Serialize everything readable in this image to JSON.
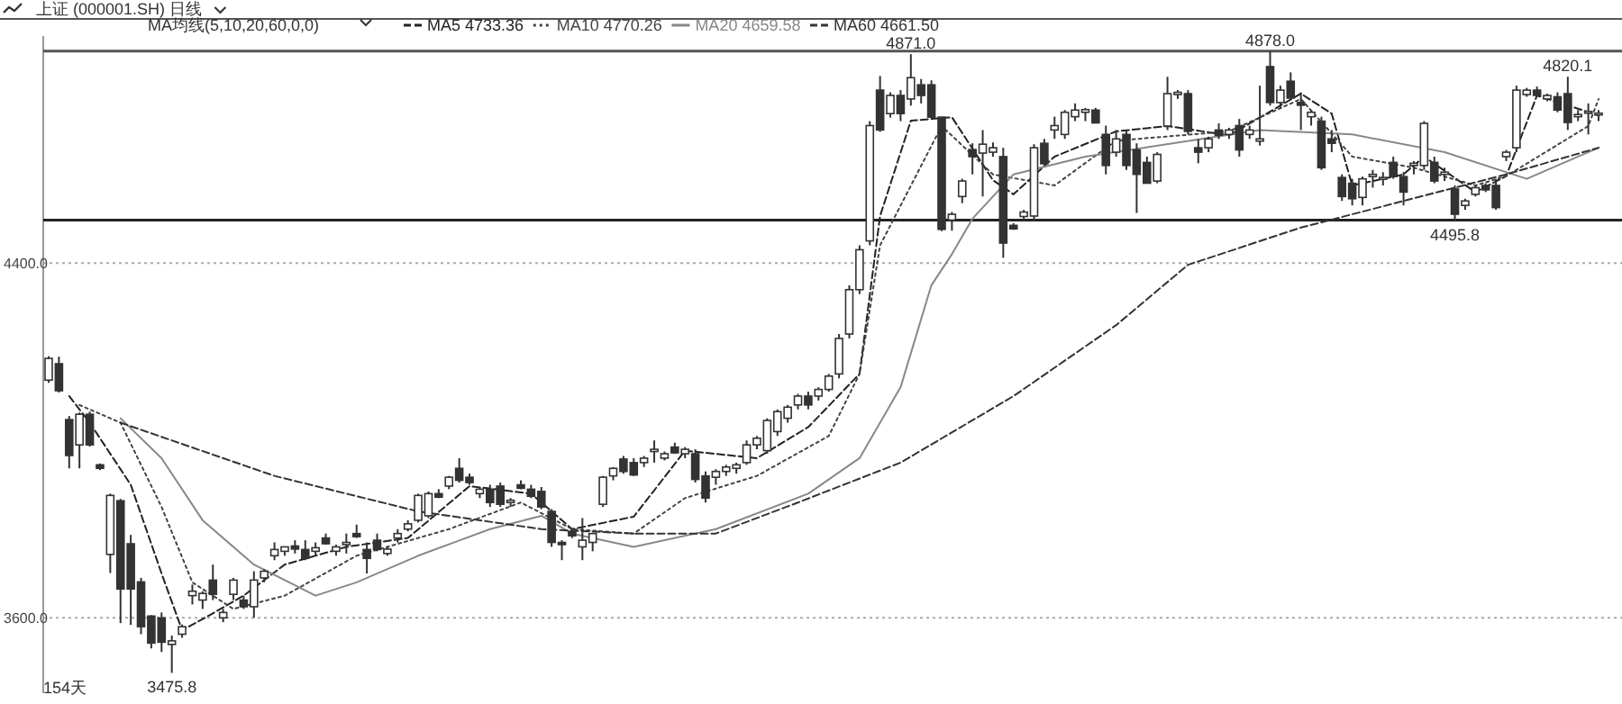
{
  "chart_data": {
    "type": "candlestick",
    "title": "上证 (000001.SH) 日线",
    "subtitle": "MA均线(5,10,20,60,0,0)",
    "categories": [
      null,
      null,
      null,
      null,
      null,
      null,
      null,
      null,
      null,
      null,
      null,
      null,
      null,
      null,
      null,
      null,
      null,
      null,
      null,
      null,
      null,
      null,
      null,
      null,
      null,
      null,
      null,
      null,
      null,
      null,
      null,
      null,
      null,
      null,
      null,
      null,
      null,
      null,
      null,
      null,
      null,
      null,
      null,
      null,
      null,
      null,
      null,
      null,
      null,
      null,
      null,
      null,
      null,
      null,
      null,
      null,
      null,
      null,
      null,
      null,
      null,
      null,
      null,
      null,
      null,
      null,
      null,
      null,
      null,
      null,
      null,
      null,
      null,
      null,
      null,
      null,
      null,
      null,
      null,
      null,
      null,
      null,
      null,
      null,
      null,
      null,
      null,
      null,
      null,
      null,
      null,
      null,
      null,
      null,
      null,
      null,
      null,
      null,
      null,
      null,
      null,
      null,
      null,
      null,
      null,
      null,
      null,
      null,
      null,
      null,
      null,
      null,
      null,
      null,
      null,
      null,
      null,
      null,
      null,
      null,
      null,
      null,
      null,
      null,
      null,
      null,
      null,
      null,
      null,
      null,
      null,
      null,
      null,
      null,
      null,
      null,
      null,
      null,
      null,
      null,
      null,
      null,
      null,
      null,
      null,
      null,
      null,
      null,
      null,
      null,
      null,
      null
    ],
    "ohlc": [
      [
        4136,
        4190,
        4130,
        4185
      ],
      [
        4173,
        4189,
        4108,
        4112
      ],
      [
        4047,
        4055,
        3937,
        3966
      ],
      [
        3990,
        4063,
        3937,
        4059
      ],
      [
        4059,
        4065,
        3986,
        3990
      ],
      [
        3945,
        3948,
        3933,
        3937
      ],
      [
        3743,
        3880,
        3701,
        3876
      ],
      [
        3864,
        3868,
        3588,
        3665
      ],
      [
        3767,
        3787,
        3584,
        3665
      ],
      [
        3681,
        3690,
        3563,
        3580
      ],
      [
        3604,
        3606,
        3531,
        3543
      ],
      [
        3600,
        3612,
        3523,
        3545
      ],
      [
        3540,
        3560,
        3475.8,
        3548
      ],
      [
        3563,
        3585,
        3555,
        3580
      ],
      [
        3650,
        3675,
        3630,
        3660
      ],
      [
        3640,
        3660,
        3620,
        3655
      ],
      [
        3685,
        3720,
        3640,
        3653
      ],
      [
        3600,
        3620,
        3590,
        3612
      ],
      [
        3653,
        3690,
        3640,
        3685
      ],
      [
        3640,
        3650,
        3620,
        3625
      ],
      [
        3625,
        3705,
        3600,
        3685
      ],
      [
        3690,
        3710,
        3680,
        3705
      ],
      [
        3740,
        3770,
        3730,
        3754
      ],
      [
        3750,
        3760,
        3740,
        3760
      ],
      [
        3762,
        3775,
        3745,
        3755
      ],
      [
        3754,
        3775,
        3730,
        3734
      ],
      [
        3750,
        3770,
        3740,
        3758
      ],
      [
        3780,
        3790,
        3765,
        3767
      ],
      [
        3750,
        3765,
        3740,
        3760
      ],
      [
        3765,
        3790,
        3745,
        3770
      ],
      [
        3790,
        3810,
        3780,
        3783
      ],
      [
        3754,
        3770,
        3700,
        3734
      ],
      [
        3775,
        3790,
        3750,
        3754
      ],
      [
        3745,
        3760,
        3740,
        3755
      ],
      [
        3780,
        3800,
        3770,
        3790
      ],
      [
        3800,
        3820,
        3795,
        3812
      ],
      [
        3820,
        3880,
        3815,
        3876
      ],
      [
        3830,
        3885,
        3825,
        3880
      ],
      [
        3880,
        3890,
        3870,
        3872
      ],
      [
        3897,
        3920,
        3890,
        3917
      ],
      [
        3937,
        3960,
        3905,
        3910
      ],
      [
        3917,
        3925,
        3900,
        3905
      ],
      [
        3880,
        3895,
        3870,
        3890
      ],
      [
        3890,
        3900,
        3850,
        3860
      ],
      [
        3897,
        3905,
        3850,
        3856
      ],
      [
        3860,
        3870,
        3850,
        3865
      ],
      [
        3900,
        3910,
        3890,
        3892
      ],
      [
        3890,
        3900,
        3870,
        3874
      ],
      [
        3885,
        3895,
        3845,
        3850
      ],
      [
        3840,
        3845,
        3760,
        3770
      ],
      [
        3770,
        3775,
        3730,
        3765
      ],
      [
        3795,
        3800,
        3780,
        3785
      ],
      [
        3760,
        3825,
        3730,
        3775
      ],
      [
        3770,
        3790,
        3750,
        3790
      ],
      [
        3856,
        3920,
        3850,
        3917
      ],
      [
        3920,
        3940,
        3910,
        3937
      ],
      [
        3958,
        3965,
        3925,
        3930
      ],
      [
        3950,
        3960,
        3920,
        3922
      ],
      [
        3950,
        3965,
        3940,
        3960
      ],
      [
        3975,
        4000,
        3950,
        3980
      ],
      [
        3960,
        3975,
        3955,
        3970
      ],
      [
        3985,
        3995,
        3970,
        3972
      ],
      [
        3970,
        3985,
        3960,
        3980
      ],
      [
        3970,
        3980,
        3905,
        3912
      ],
      [
        3920,
        3930,
        3860,
        3870
      ],
      [
        3917,
        3935,
        3900,
        3930
      ],
      [
        3930,
        3945,
        3920,
        3940
      ],
      [
        3937,
        3950,
        3925,
        3945
      ],
      [
        3950,
        4000,
        3945,
        3990
      ],
      [
        3990,
        4010,
        3980,
        4005
      ],
      [
        3977,
        4050,
        3970,
        4045
      ],
      [
        4020,
        4070,
        4010,
        4065
      ],
      [
        4050,
        4080,
        4040,
        4075
      ],
      [
        4080,
        4105,
        4070,
        4100
      ],
      [
        4100,
        4110,
        4070,
        4080
      ],
      [
        4100,
        4120,
        4090,
        4115
      ],
      [
        4115,
        4150,
        4110,
        4145
      ],
      [
        4150,
        4240,
        4140,
        4230
      ],
      [
        4240,
        4350,
        4230,
        4340
      ],
      [
        4340,
        4440,
        4330,
        4430
      ],
      [
        4450,
        4720,
        4440,
        4710
      ],
      [
        4790,
        4822,
        4696,
        4700
      ],
      [
        4737,
        4785,
        4728,
        4778
      ],
      [
        4778,
        4790,
        4720,
        4737
      ],
      [
        4770,
        4871,
        4755,
        4818
      ],
      [
        4802,
        4815,
        4760,
        4778
      ],
      [
        4802,
        4812,
        4727,
        4729
      ],
      [
        4729,
        4730,
        4472,
        4476
      ],
      [
        4497,
        4515,
        4473,
        4510
      ],
      [
        4550,
        4590,
        4535,
        4585
      ],
      [
        4656,
        4670,
        4600,
        4640
      ],
      [
        4648,
        4700,
        4550,
        4668
      ],
      [
        4650,
        4672,
        4640,
        4660
      ],
      [
        4640,
        4660,
        4412,
        4445
      ],
      [
        4485,
        4490,
        4475,
        4477
      ],
      [
        4505,
        4520,
        4495,
        4515
      ],
      [
        4506,
        4668,
        4495,
        4660
      ],
      [
        4670,
        4680,
        4620,
        4624
      ],
      [
        4700,
        4730,
        4680,
        4710
      ],
      [
        4690,
        4745,
        4680,
        4740
      ],
      [
        4730,
        4760,
        4720,
        4745
      ],
      [
        4740,
        4750,
        4720,
        4746
      ],
      [
        4745,
        4750,
        4715,
        4716
      ],
      [
        4690,
        4710,
        4600,
        4620
      ],
      [
        4650,
        4700,
        4640,
        4680
      ],
      [
        4690,
        4700,
        4610,
        4620
      ],
      [
        4655,
        4670,
        4513,
        4600
      ],
      [
        4627,
        4640,
        4580,
        4580
      ],
      [
        4585,
        4650,
        4580,
        4645
      ],
      [
        4709,
        4820,
        4700,
        4782
      ],
      [
        4780,
        4790,
        4770,
        4785
      ],
      [
        4782,
        4790,
        4690,
        4697
      ],
      [
        4660,
        4680,
        4625,
        4650
      ],
      [
        4660,
        4685,
        4650,
        4680
      ],
      [
        4700,
        4715,
        4680,
        4688
      ],
      [
        4690,
        4705,
        4680,
        4700
      ],
      [
        4710,
        4725,
        4640,
        4655
      ],
      [
        4690,
        4710,
        4680,
        4700
      ],
      [
        4675,
        4800,
        4665,
        4680
      ],
      [
        4843,
        4878,
        4755,
        4762
      ],
      [
        4762,
        4800,
        4750,
        4790
      ],
      [
        4810,
        4830,
        4770,
        4772
      ],
      [
        4762,
        4785,
        4700,
        4756
      ],
      [
        4730,
        4745,
        4710,
        4740
      ],
      [
        4720,
        4730,
        4610,
        4615
      ],
      [
        4680,
        4700,
        4650,
        4670
      ],
      [
        4593,
        4600,
        4540,
        4550
      ],
      [
        4580,
        4590,
        4530,
        4545
      ],
      [
        4548,
        4595,
        4530,
        4590
      ],
      [
        4595,
        4610,
        4570,
        4600
      ],
      [
        4590,
        4605,
        4575,
        4593
      ],
      [
        4627,
        4640,
        4590,
        4595
      ],
      [
        4595,
        4605,
        4530,
        4560
      ],
      [
        4620,
        4630,
        4600,
        4625
      ],
      [
        4620,
        4720,
        4610,
        4715
      ],
      [
        4627,
        4640,
        4580,
        4585
      ],
      [
        4600,
        4615,
        4585,
        4605
      ],
      [
        4567,
        4575,
        4495.8,
        4510
      ],
      [
        4530,
        4545,
        4520,
        4540
      ],
      [
        4555,
        4575,
        4550,
        4570
      ],
      [
        4575,
        4580,
        4560,
        4565
      ],
      [
        4575,
        4590,
        4520,
        4525
      ],
      [
        4640,
        4655,
        4630,
        4650
      ],
      [
        4660,
        4800,
        4650,
        4790
      ],
      [
        4780,
        4795,
        4775,
        4790
      ],
      [
        4790,
        4798,
        4775,
        4778
      ],
      [
        4770,
        4782,
        4765,
        4778
      ],
      [
        4775,
        4785,
        4740,
        4745
      ],
      [
        4782,
        4820.1,
        4700,
        4717
      ],
      [
        4730,
        4745,
        4720,
        4735
      ],
      [
        4740,
        4760,
        4690,
        4742
      ],
      [
        4735,
        4745,
        4720,
        4738
      ]
    ],
    "series": [
      {
        "name": "MA5 4733.36",
        "type": "line",
        "color": "#222222",
        "line_style": "dashed",
        "values": [
          null,
          null,
          4100,
          null,
          4040,
          null,
          null,
          null,
          3900,
          null,
          null,
          3700,
          null,
          3572,
          null,
          null,
          3610,
          null,
          null,
          3650,
          null,
          null,
          null,
          3720,
          null,
          null,
          null,
          null,
          null,
          3760,
          null,
          null,
          null,
          null,
          null,
          3780,
          null,
          null,
          null,
          null,
          null,
          3897,
          null,
          null,
          null,
          null,
          null,
          3880,
          null,
          null,
          null,
          3800,
          null,
          null,
          null,
          null,
          null,
          3828,
          null,
          null,
          null,
          null,
          3977,
          null,
          null,
          null,
          null,
          null,
          null,
          3960,
          null,
          null,
          null,
          null,
          4030,
          null,
          null,
          null,
          null,
          4150,
          null,
          4506,
          null,
          null,
          4721,
          null,
          null,
          null,
          4729,
          null,
          null,
          null,
          4587,
          null,
          4555,
          null,
          null,
          null,
          4640,
          null,
          null,
          null,
          null,
          null,
          4697,
          null,
          null,
          null,
          null,
          4709,
          null,
          null,
          null,
          null,
          null,
          4688,
          null,
          null,
          null,
          null,
          null,
          null,
          4782,
          null,
          null,
          4737,
          null,
          4575,
          null,
          null,
          null,
          null,
          4600,
          null,
          4640,
          null,
          null,
          null,
          null,
          4560,
          null,
          null,
          4596,
          null,
          null,
          4778,
          null,
          null,
          null,
          null,
          null,
          4733
        ]
      },
      {
        "name": "MA10 4770.26",
        "type": "line",
        "color": "#444444",
        "line_style": "dotted",
        "values": [
          null,
          null,
          null,
          4080,
          null,
          null,
          null,
          4040,
          null,
          null,
          null,
          3850,
          null,
          null,
          3680,
          null,
          null,
          null,
          3620,
          null,
          null,
          null,
          null,
          3650,
          null,
          null,
          null,
          null,
          null,
          null,
          3740,
          null,
          null,
          null,
          null,
          null,
          null,
          null,
          null,
          3800,
          null,
          null,
          null,
          null,
          null,
          null,
          3860,
          null,
          null,
          null,
          null,
          3800,
          null,
          null,
          null,
          null,
          null,
          3790,
          null,
          null,
          null,
          null,
          3870,
          null,
          null,
          null,
          null,
          null,
          null,
          3920,
          null,
          null,
          null,
          null,
          null,
          null,
          4010,
          null,
          null,
          4150,
          null,
          4440,
          null,
          null,
          null,
          null,
          null,
          4709,
          null,
          null,
          null,
          null,
          4600,
          null,
          null,
          null,
          null,
          null,
          4575,
          null,
          null,
          null,
          null,
          null,
          4676,
          null,
          null,
          null,
          null,
          null,
          null,
          null,
          null,
          null,
          null,
          4697,
          null,
          null,
          null,
          null,
          null,
          null,
          4770,
          null,
          null,
          null,
          null,
          4640,
          null,
          null,
          null,
          null,
          null,
          4615,
          null,
          null,
          null,
          null,
          null,
          4575,
          null,
          null,
          4596,
          null,
          null,
          null,
          null,
          null,
          null,
          null,
          4709,
          4770
        ]
      },
      {
        "name": "MA20 4659.58",
        "type": "line",
        "color": "#888888",
        "line_style": "solid",
        "values": [
          null,
          null,
          null,
          null,
          null,
          null,
          null,
          4050,
          null,
          null,
          null,
          3960,
          null,
          null,
          null,
          3820,
          null,
          null,
          null,
          null,
          3720,
          null,
          null,
          null,
          null,
          null,
          3650,
          null,
          null,
          null,
          3680,
          null,
          null,
          null,
          null,
          null,
          3740,
          null,
          null,
          null,
          null,
          null,
          null,
          3800,
          null,
          null,
          null,
          null,
          3830,
          null,
          null,
          3790,
          null,
          null,
          null,
          null,
          null,
          3760,
          null,
          null,
          null,
          null,
          null,
          null,
          null,
          3800,
          null,
          null,
          null,
          null,
          null,
          null,
          null,
          null,
          3880,
          null,
          null,
          null,
          null,
          3960,
          null,
          null,
          null,
          4120,
          null,
          null,
          4350,
          null,
          4420,
          null,
          4500,
          null,
          null,
          null,
          4600,
          null,
          null,
          null,
          null,
          null,
          null,
          4640,
          null,
          null,
          null,
          null,
          null,
          null,
          null,
          null,
          null,
          null,
          null,
          null,
          null,
          null,
          null,
          null,
          4700,
          null,
          null,
          null,
          null,
          null,
          null,
          null,
          null,
          4690,
          null,
          null,
          null,
          null,
          null,
          null,
          null,
          null,
          4650,
          null,
          null,
          null,
          null,
          null,
          null,
          null,
          4590,
          null,
          null,
          null,
          null,
          null,
          null,
          4660
        ]
      },
      {
        "name": "MA60 4661.50",
        "type": "line",
        "color": "#333333",
        "line_style": "dashed",
        "values": [
          null,
          null,
          null,
          null,
          null,
          null,
          null,
          4040,
          null,
          null,
          null,
          null,
          null,
          null,
          null,
          null,
          null,
          null,
          null,
          null,
          null,
          null,
          3920,
          null,
          null,
          null,
          null,
          null,
          null,
          null,
          null,
          null,
          null,
          null,
          null,
          null,
          3840,
          null,
          null,
          null,
          null,
          null,
          null,
          null,
          null,
          null,
          null,
          null,
          3800,
          null,
          null,
          null,
          null,
          null,
          null,
          null,
          null,
          3790,
          null,
          null,
          null,
          null,
          null,
          null,
          null,
          3790,
          null,
          null,
          null,
          null,
          null,
          null,
          null,
          3860,
          null,
          null,
          null,
          null,
          null,
          null,
          null,
          null,
          null,
          3950,
          null,
          null,
          null,
          null,
          null,
          null,
          null,
          null,
          null,
          null,
          4100,
          null,
          null,
          null,
          null,
          null,
          null,
          null,
          null,
          null,
          4260,
          null,
          null,
          null,
          null,
          null,
          null,
          4396,
          null,
          null,
          null,
          null,
          null,
          null,
          null,
          null,
          null,
          null,
          4480,
          null,
          null,
          null,
          null,
          null,
          null,
          null,
          null,
          null,
          4540,
          null,
          null,
          null,
          null,
          null,
          null,
          null,
          null,
          null,
          4600,
          null,
          null,
          null,
          null,
          null,
          null,
          null,
          null,
          4660
        ]
      }
    ],
    "ylim": [
      3430,
      4912
    ],
    "yticks": [
      {
        "value": 4400,
        "label": "4400.0"
      },
      {
        "value": 3600,
        "label": "3600.0"
      }
    ],
    "grid": "y",
    "legend": "top left",
    "ref_lines": [
      {
        "axis": "y",
        "value": 4878,
        "color": "#555555"
      },
      {
        "axis": "y",
        "value": 4497,
        "color": "#222222"
      }
    ],
    "annotations": [
      {
        "text": "4871.0",
        "y": 4871
      },
      {
        "text": "4878.0",
        "y": 4878
      },
      {
        "text": "4820.1",
        "y": 4820.1
      },
      {
        "text": "4495.8",
        "y": 4495.8
      },
      {
        "text": "3475.8",
        "y": 3475.8
      },
      "154天"
    ]
  }
}
